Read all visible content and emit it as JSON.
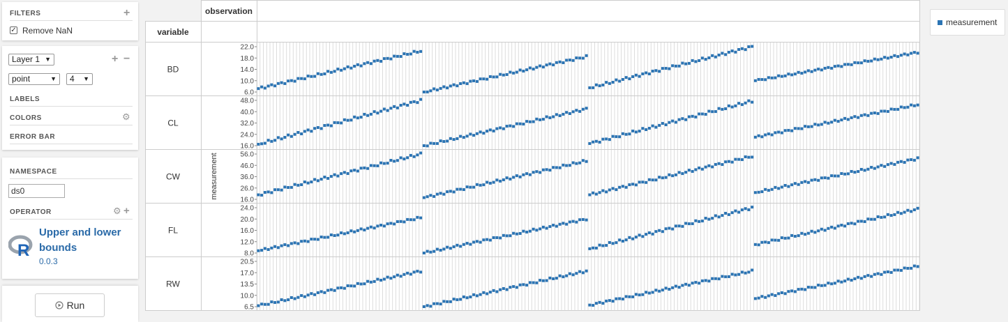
{
  "filters": {
    "title": "FILTERS",
    "add_icon": "plus-icon",
    "remove_nan": {
      "label": "Remove NaN",
      "checked": true
    }
  },
  "layer": {
    "selected": "Layer 1",
    "geom": "point",
    "size": "4",
    "labels_title": "LABELS",
    "colors_title": "COLORS",
    "errorbar_title": "ERROR BAR",
    "settings_icon": "gear-icon"
  },
  "namespace": {
    "title": "NAMESPACE",
    "value": "ds0"
  },
  "operator": {
    "title": "OPERATOR",
    "name": "Upper and lower bounds",
    "version": "0.0.3",
    "logo_letter": "R"
  },
  "run_button": {
    "label": "Run",
    "icon": "play-circle-icon"
  },
  "grid": {
    "column_header": "observation",
    "row_header": "variable",
    "y_axis_label": "measurement",
    "rows": [
      "BD",
      "CL",
      "CW",
      "FL",
      "RW"
    ]
  },
  "legend": {
    "label": "measurement",
    "color": "#2b74b4"
  },
  "chart_data": {
    "type": "scatter",
    "ylabel": "measurement",
    "facets": [
      {
        "variable": "BD",
        "ylim": [
          6.0,
          22.0
        ],
        "yticks": [
          "22.0",
          "18.0",
          "14.0",
          "10.0",
          "6.0"
        ],
        "groups": [
          [
            7.2,
            20.5
          ],
          [
            6.0,
            18.5
          ],
          [
            7.5,
            22.0
          ],
          [
            10.0,
            20.0
          ]
        ]
      },
      {
        "variable": "CL",
        "ylim": [
          16.0,
          48.0
        ],
        "yticks": [
          "48.0",
          "40.0",
          "32.0",
          "24.0",
          "16.0"
        ],
        "groups": [
          [
            17.0,
            48.0
          ],
          [
            16.0,
            42.0
          ],
          [
            17.5,
            47.5
          ],
          [
            22.0,
            45.0
          ]
        ]
      },
      {
        "variable": "CW",
        "ylim": [
          16.0,
          56.0
        ],
        "yticks": [
          "56.0",
          "46.0",
          "36.0",
          "26.0",
          "16.0"
        ],
        "groups": [
          [
            20.0,
            56.0
          ],
          [
            17.5,
            50.0
          ],
          [
            20.0,
            54.0
          ],
          [
            22.0,
            52.0
          ]
        ]
      },
      {
        "variable": "FL",
        "ylim": [
          8.0,
          24.0
        ],
        "yticks": [
          "24.0",
          "20.0",
          "16.0",
          "12.0",
          "8.0"
        ],
        "groups": [
          [
            8.8,
            20.5
          ],
          [
            8.0,
            20.0
          ],
          [
            9.5,
            24.0
          ],
          [
            11.0,
            23.5
          ]
        ]
      },
      {
        "variable": "RW",
        "ylim": [
          6.5,
          20.5
        ],
        "yticks": [
          "20.5",
          "17.0",
          "13.5",
          "10.0",
          "6.5"
        ],
        "groups": [
          [
            6.8,
            17.5
          ],
          [
            6.5,
            17.5
          ],
          [
            7.0,
            17.5
          ],
          [
            9.0,
            19.0
          ]
        ]
      }
    ]
  }
}
